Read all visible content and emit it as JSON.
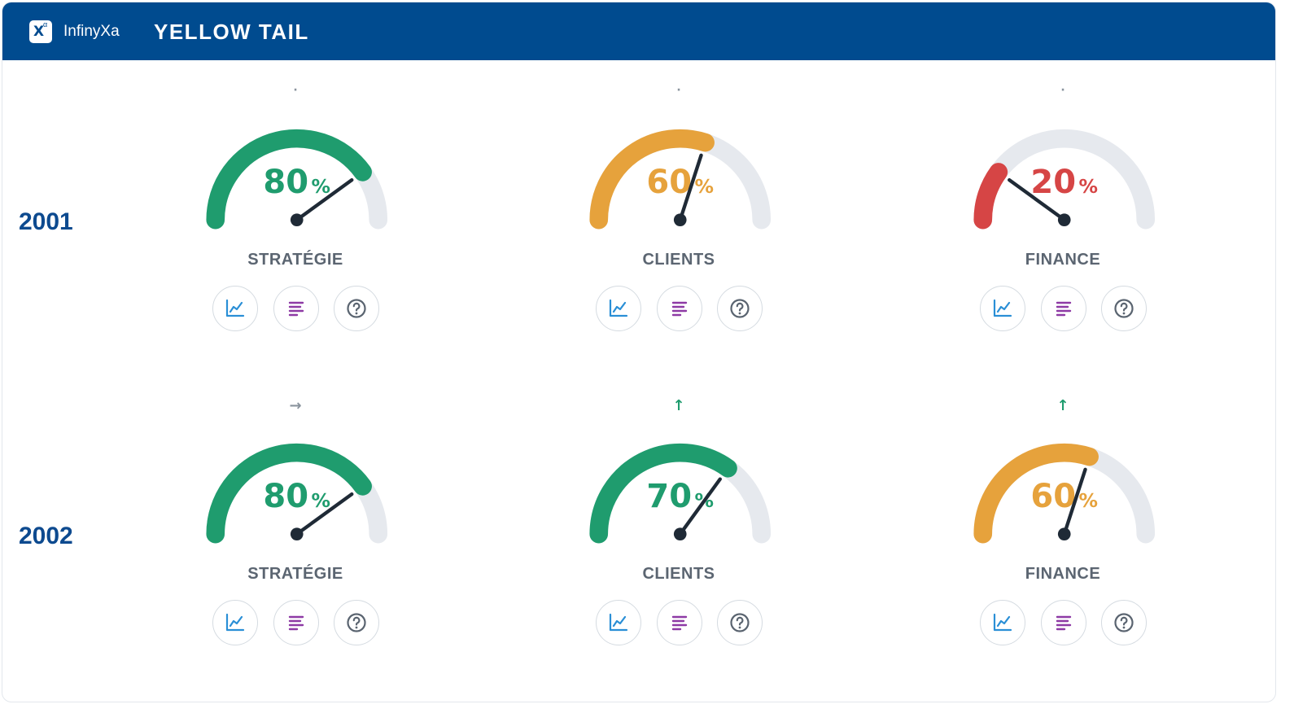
{
  "header": {
    "brand": "InfinyXa",
    "logo_letter": "X",
    "logo_sup": "α",
    "title": "YELLOW TAIL"
  },
  "colors": {
    "header_bg": "#004b8f",
    "year_text": "#0d4a8f",
    "green": "#1f9c6e",
    "orange": "#e6a23c",
    "red": "#d64545",
    "track": "#e6e9ee",
    "needle": "#1f2a36",
    "chart_icon": "#2a8fd6",
    "report_icon": "#8e3aa5",
    "help_icon": "#5a6470"
  },
  "rows": [
    {
      "year": "2001",
      "cards": [
        {
          "label": "STRATÉGIE",
          "value": 80,
          "value_text": "80",
          "unit": "%",
          "color": "green",
          "trend": "dot",
          "trend_glyph": "·"
        },
        {
          "label": "CLIENTS",
          "value": 60,
          "value_text": "60",
          "unit": "%",
          "color": "orange",
          "trend": "dot",
          "trend_glyph": "·"
        },
        {
          "label": "FINANCE",
          "value": 20,
          "value_text": "20",
          "unit": "%",
          "color": "red",
          "trend": "dot",
          "trend_glyph": "·"
        }
      ]
    },
    {
      "year": "2002",
      "cards": [
        {
          "label": "STRATÉGIE",
          "value": 80,
          "value_text": "80",
          "unit": "%",
          "color": "green",
          "trend": "right-arrow",
          "trend_glyph": "→"
        },
        {
          "label": "CLIENTS",
          "value": 70,
          "value_text": "70",
          "unit": "%",
          "color": "green",
          "trend": "up-arrow",
          "trend_glyph": "↑"
        },
        {
          "label": "FINANCE",
          "value": 60,
          "value_text": "60",
          "unit": "%",
          "color": "orange",
          "trend": "up-arrow",
          "trend_glyph": "↑"
        }
      ]
    }
  ],
  "actions": [
    {
      "icon": "line-chart-icon",
      "color": "chart_icon"
    },
    {
      "icon": "report-lines-icon",
      "color": "report_icon"
    },
    {
      "icon": "help-circle-icon",
      "color": "help_icon"
    }
  ]
}
